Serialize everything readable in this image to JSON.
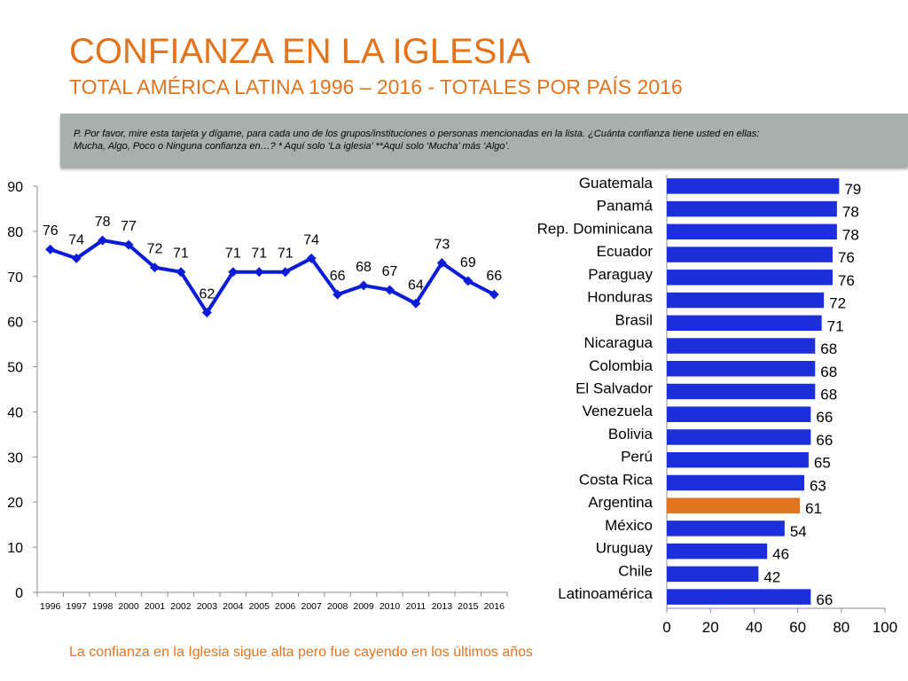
{
  "title": "CONFIANZA EN LA IGLESIA",
  "subtitle": "TOTAL AMÉRICA LATINA 1996 – 2016 - TOTALES POR PAÍS 2016",
  "question": {
    "line1": "P. Por favor, mire esta tarjeta y dígame, para cada uno de los grupos/instituciones o personas mencionadas en la lista. ¿Cuánta confianza tiene usted en ellas:",
    "line2": "Mucha, Algo, Poco o Ninguna confianza en…? * Aquí solo ‘La iglesia’   **Aquí solo ‘Mucha’ más ‘Algo’."
  },
  "footer_note": "La confianza en la Iglesia sigue alta pero fue cayendo en los últimos años",
  "colors": {
    "accent": "#e2741e",
    "line": "#0a1cd8",
    "bar": "#1d2edb",
    "bar_highlight": "#e2741e",
    "question_bg": "#a6b1ad"
  },
  "chart_data": [
    {
      "type": "line",
      "title": "",
      "xlabel": "",
      "ylabel": "",
      "x": [
        "1996",
        "1997",
        "1998",
        "2000",
        "2001",
        "2002",
        "2003",
        "2004",
        "2005",
        "2006",
        "2007",
        "2008",
        "2009",
        "2010",
        "2011",
        "2013",
        "2015",
        "2016"
      ],
      "values": [
        76,
        74,
        78,
        77,
        72,
        71,
        62,
        71,
        71,
        71,
        74,
        66,
        68,
        67,
        64,
        73,
        69,
        66
      ],
      "ylim": [
        0,
        90
      ],
      "yticks": [
        0,
        10,
        20,
        30,
        40,
        50,
        60,
        70,
        80,
        90
      ],
      "grid": false,
      "data_labels": true
    },
    {
      "type": "bar",
      "orientation": "horizontal",
      "title": "",
      "categories": [
        "Guatemala",
        "Panamá",
        "Rep. Dominicana",
        "Ecuador",
        "Paraguay",
        "Honduras",
        "Brasil",
        "Nicaragua",
        "Colombia",
        "El Salvador",
        "Venezuela",
        "Bolivia",
        "Perú",
        "Costa Rica",
        "Argentina",
        "México",
        "Uruguay",
        "Chile",
        "Latinoamérica"
      ],
      "values": [
        79,
        78,
        78,
        76,
        76,
        72,
        71,
        68,
        68,
        68,
        66,
        66,
        65,
        63,
        61,
        54,
        46,
        42,
        66
      ],
      "highlight": "Argentina",
      "xlim": [
        0,
        100
      ],
      "xticks": [
        0,
        20,
        40,
        60,
        80,
        100
      ],
      "grid": false,
      "data_labels": true
    }
  ]
}
